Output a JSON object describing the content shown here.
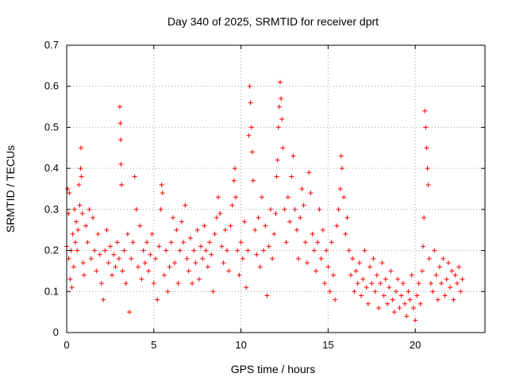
{
  "chart_data": {
    "type": "scatter",
    "title": "Day 340 of 2025, SRMTID for receiver dprt",
    "xlabel": "GPS time / hours",
    "ylabel": "SRMTID / TECUs",
    "xlim": [
      0,
      24
    ],
    "ylim": [
      0,
      0.7
    ],
    "xticks": [
      0,
      5,
      10,
      15,
      20
    ],
    "yticks": [
      0,
      0.1,
      0.2,
      0.3,
      0.4,
      0.5,
      0.6,
      0.7
    ],
    "grid": true,
    "marker": "plus",
    "color": "#ff0000",
    "series": [
      {
        "name": "SRMTID",
        "points": [
          [
            0.0,
            0.21
          ],
          [
            0.05,
            0.35
          ],
          [
            0.1,
            0.29
          ],
          [
            0.12,
            0.18
          ],
          [
            0.15,
            0.34
          ],
          [
            0.2,
            0.13
          ],
          [
            0.25,
            0.2
          ],
          [
            0.3,
            0.11
          ],
          [
            0.35,
            0.24
          ],
          [
            0.4,
            0.16
          ],
          [
            0.45,
            0.3
          ],
          [
            0.5,
            0.22
          ],
          [
            0.55,
            0.27
          ],
          [
            0.6,
            0.2
          ],
          [
            0.65,
            0.25
          ],
          [
            0.7,
            0.36
          ],
          [
            0.75,
            0.31
          ],
          [
            0.8,
            0.4
          ],
          [
            0.82,
            0.45
          ],
          [
            0.85,
            0.38
          ],
          [
            0.9,
            0.29
          ],
          [
            0.95,
            0.17
          ],
          [
            1.0,
            0.14
          ],
          [
            1.1,
            0.26
          ],
          [
            1.2,
            0.22
          ],
          [
            1.3,
            0.3
          ],
          [
            1.4,
            0.18
          ],
          [
            1.5,
            0.28
          ],
          [
            1.6,
            0.2
          ],
          [
            1.7,
            0.15
          ],
          [
            1.8,
            0.24
          ],
          [
            1.9,
            0.19
          ],
          [
            2.0,
            0.12
          ],
          [
            2.1,
            0.08
          ],
          [
            2.2,
            0.2
          ],
          [
            2.3,
            0.25
          ],
          [
            2.4,
            0.17
          ],
          [
            2.5,
            0.21
          ],
          [
            2.6,
            0.14
          ],
          [
            2.7,
            0.19
          ],
          [
            2.8,
            0.16
          ],
          [
            2.9,
            0.22
          ],
          [
            3.0,
            0.18
          ],
          [
            3.05,
            0.55
          ],
          [
            3.08,
            0.51
          ],
          [
            3.1,
            0.47
          ],
          [
            3.12,
            0.41
          ],
          [
            3.15,
            0.36
          ],
          [
            3.2,
            0.15
          ],
          [
            3.3,
            0.2
          ],
          [
            3.4,
            0.12
          ],
          [
            3.5,
            0.24
          ],
          [
            3.6,
            0.05
          ],
          [
            3.7,
            0.18
          ],
          [
            3.8,
            0.22
          ],
          [
            3.9,
            0.38
          ],
          [
            4.0,
            0.3
          ],
          [
            4.1,
            0.16
          ],
          [
            4.2,
            0.26
          ],
          [
            4.3,
            0.13
          ],
          [
            4.4,
            0.2
          ],
          [
            4.5,
            0.17
          ],
          [
            4.6,
            0.22
          ],
          [
            4.7,
            0.15
          ],
          [
            4.8,
            0.19
          ],
          [
            4.9,
            0.24
          ],
          [
            5.0,
            0.12
          ],
          [
            5.1,
            0.18
          ],
          [
            5.2,
            0.08
          ],
          [
            5.3,
            0.21
          ],
          [
            5.4,
            0.3
          ],
          [
            5.45,
            0.36
          ],
          [
            5.5,
            0.34
          ],
          [
            5.6,
            0.14
          ],
          [
            5.7,
            0.2
          ],
          [
            5.8,
            0.1
          ],
          [
            5.9,
            0.16
          ],
          [
            6.0,
            0.22
          ],
          [
            6.1,
            0.28
          ],
          [
            6.2,
            0.17
          ],
          [
            6.3,
            0.25
          ],
          [
            6.4,
            0.12
          ],
          [
            6.5,
            0.2
          ],
          [
            6.6,
            0.27
          ],
          [
            6.7,
            0.22
          ],
          [
            6.8,
            0.31
          ],
          [
            6.9,
            0.18
          ],
          [
            7.0,
            0.15
          ],
          [
            7.1,
            0.23
          ],
          [
            7.2,
            0.12
          ],
          [
            7.3,
            0.2
          ],
          [
            7.4,
            0.17
          ],
          [
            7.5,
            0.25
          ],
          [
            7.6,
            0.13
          ],
          [
            7.7,
            0.21
          ],
          [
            7.8,
            0.18
          ],
          [
            7.9,
            0.26
          ],
          [
            8.0,
            0.2
          ],
          [
            8.1,
            0.16
          ],
          [
            8.2,
            0.22
          ],
          [
            8.3,
            0.19
          ],
          [
            8.4,
            0.1
          ],
          [
            8.5,
            0.24
          ],
          [
            8.6,
            0.28
          ],
          [
            8.7,
            0.33
          ],
          [
            8.8,
            0.29
          ],
          [
            8.9,
            0.21
          ],
          [
            9.0,
            0.17
          ],
          [
            9.1,
            0.25
          ],
          [
            9.2,
            0.2
          ],
          [
            9.3,
            0.15
          ],
          [
            9.4,
            0.26
          ],
          [
            9.5,
            0.31
          ],
          [
            9.6,
            0.37
          ],
          [
            9.65,
            0.4
          ],
          [
            9.7,
            0.33
          ],
          [
            9.8,
            0.2
          ],
          [
            9.9,
            0.14
          ],
          [
            10.0,
            0.22
          ],
          [
            10.1,
            0.18
          ],
          [
            10.2,
            0.27
          ],
          [
            10.3,
            0.11
          ],
          [
            10.4,
            0.2
          ],
          [
            10.45,
            0.48
          ],
          [
            10.5,
            0.6
          ],
          [
            10.55,
            0.56
          ],
          [
            10.6,
            0.5
          ],
          [
            10.65,
            0.44
          ],
          [
            10.7,
            0.37
          ],
          [
            10.8,
            0.25
          ],
          [
            10.9,
            0.19
          ],
          [
            11.0,
            0.28
          ],
          [
            11.1,
            0.16
          ],
          [
            11.2,
            0.33
          ],
          [
            11.3,
            0.2
          ],
          [
            11.4,
            0.26
          ],
          [
            11.5,
            0.09
          ],
          [
            11.6,
            0.21
          ],
          [
            11.7,
            0.3
          ],
          [
            11.8,
            0.18
          ],
          [
            11.9,
            0.24
          ],
          [
            12.0,
            0.29
          ],
          [
            12.05,
            0.38
          ],
          [
            12.1,
            0.42
          ],
          [
            12.15,
            0.5
          ],
          [
            12.2,
            0.55
          ],
          [
            12.25,
            0.61
          ],
          [
            12.3,
            0.57
          ],
          [
            12.35,
            0.52
          ],
          [
            12.4,
            0.45
          ],
          [
            12.5,
            0.3
          ],
          [
            12.6,
            0.22
          ],
          [
            12.7,
            0.33
          ],
          [
            12.8,
            0.27
          ],
          [
            12.9,
            0.38
          ],
          [
            13.0,
            0.43
          ],
          [
            13.1,
            0.3
          ],
          [
            13.2,
            0.25
          ],
          [
            13.3,
            0.18
          ],
          [
            13.4,
            0.28
          ],
          [
            13.5,
            0.35
          ],
          [
            13.6,
            0.31
          ],
          [
            13.7,
            0.22
          ],
          [
            13.8,
            0.17
          ],
          [
            13.9,
            0.39
          ],
          [
            14.0,
            0.34
          ],
          [
            14.1,
            0.24
          ],
          [
            14.2,
            0.2
          ],
          [
            14.3,
            0.15
          ],
          [
            14.4,
            0.22
          ],
          [
            14.5,
            0.3
          ],
          [
            14.6,
            0.18
          ],
          [
            14.7,
            0.25
          ],
          [
            14.8,
            0.12
          ],
          [
            14.9,
            0.2
          ],
          [
            15.0,
            0.16
          ],
          [
            15.1,
            0.1
          ],
          [
            15.2,
            0.22
          ],
          [
            15.3,
            0.14
          ],
          [
            15.4,
            0.08
          ],
          [
            15.5,
            0.26
          ],
          [
            15.6,
            0.3
          ],
          [
            15.7,
            0.35
          ],
          [
            15.75,
            0.43
          ],
          [
            15.8,
            0.4
          ],
          [
            15.9,
            0.33
          ],
          [
            16.0,
            0.24
          ],
          [
            16.1,
            0.28
          ],
          [
            16.2,
            0.2
          ],
          [
            16.3,
            0.14
          ],
          [
            16.4,
            0.18
          ],
          [
            16.5,
            0.1
          ],
          [
            16.6,
            0.15
          ],
          [
            16.7,
            0.12
          ],
          [
            16.8,
            0.17
          ],
          [
            16.9,
            0.09
          ],
          [
            17.0,
            0.13
          ],
          [
            17.1,
            0.2
          ],
          [
            17.2,
            0.11
          ],
          [
            17.3,
            0.07
          ],
          [
            17.4,
            0.16
          ],
          [
            17.5,
            0.12
          ],
          [
            17.6,
            0.18
          ],
          [
            17.7,
            0.1
          ],
          [
            17.8,
            0.14
          ],
          [
            17.9,
            0.06
          ],
          [
            18.0,
            0.12
          ],
          [
            18.1,
            0.17
          ],
          [
            18.2,
            0.09
          ],
          [
            18.3,
            0.13
          ],
          [
            18.4,
            0.07
          ],
          [
            18.5,
            0.11
          ],
          [
            18.6,
            0.15
          ],
          [
            18.7,
            0.08
          ],
          [
            18.8,
            0.05
          ],
          [
            18.9,
            0.1
          ],
          [
            19.0,
            0.13
          ],
          [
            19.1,
            0.06
          ],
          [
            19.2,
            0.09
          ],
          [
            19.3,
            0.12
          ],
          [
            19.4,
            0.07
          ],
          [
            19.5,
            0.04
          ],
          [
            19.6,
            0.1
          ],
          [
            19.7,
            0.08
          ],
          [
            19.8,
            0.14
          ],
          [
            19.9,
            0.06
          ],
          [
            20.0,
            0.03
          ],
          [
            20.1,
            0.09
          ],
          [
            20.2,
            0.12
          ],
          [
            20.3,
            0.07
          ],
          [
            20.4,
            0.15
          ],
          [
            20.45,
            0.21
          ],
          [
            20.5,
            0.28
          ],
          [
            20.55,
            0.54
          ],
          [
            20.6,
            0.5
          ],
          [
            20.65,
            0.45
          ],
          [
            20.7,
            0.4
          ],
          [
            20.75,
            0.36
          ],
          [
            20.8,
            0.18
          ],
          [
            20.9,
            0.12
          ],
          [
            21.0,
            0.1
          ],
          [
            21.1,
            0.2
          ],
          [
            21.2,
            0.14
          ],
          [
            21.3,
            0.08
          ],
          [
            21.4,
            0.16
          ],
          [
            21.5,
            0.12
          ],
          [
            21.6,
            0.18
          ],
          [
            21.7,
            0.09
          ],
          [
            21.8,
            0.13
          ],
          [
            21.9,
            0.17
          ],
          [
            22.0,
            0.11
          ],
          [
            22.1,
            0.15
          ],
          [
            22.2,
            0.08
          ],
          [
            22.3,
            0.14
          ],
          [
            22.4,
            0.12
          ],
          [
            22.5,
            0.16
          ],
          [
            22.6,
            0.1
          ],
          [
            22.7,
            0.13
          ]
        ]
      }
    ]
  }
}
